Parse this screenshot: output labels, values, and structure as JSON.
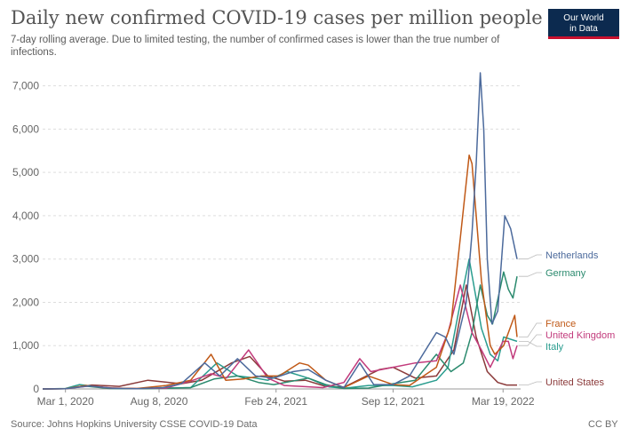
{
  "header": {
    "title": "Daily new confirmed COVID-19 cases per million people",
    "subtitle": "7-day rolling average. Due to limited testing, the number of confirmed cases is lower than the true number of infections.",
    "logo_line1": "Our World",
    "logo_line2": "in Data"
  },
  "footer": {
    "source": "Source: Johns Hopkins University CSSE COVID-19 Data",
    "license": "CC BY"
  },
  "chart_data": {
    "type": "line",
    "title": "Daily new confirmed COVID-19 cases per million people",
    "ylim": [
      0,
      7300
    ],
    "yticks": [
      0,
      1000,
      2000,
      3000,
      4000,
      5000,
      6000,
      7000
    ],
    "ytick_labels": [
      "0",
      "1,000",
      "2,000",
      "3,000",
      "4,000",
      "5,000",
      "6,000",
      "7,000"
    ],
    "xlim": [
      "2020-01-22",
      "2022-04-18"
    ],
    "xticks": [
      "2020-03-01",
      "2020-08-08",
      "2021-02-24",
      "2021-09-12",
      "2022-03-19"
    ],
    "xtick_labels": [
      "Mar 1, 2020",
      "Aug 8, 2020",
      "Feb 24, 2021",
      "Sep 12, 2021",
      "Mar 19, 2022"
    ],
    "grid": true,
    "legend": "right-end-labels",
    "series": [
      {
        "name": "Netherlands",
        "color": "#4c6a9c",
        "points": [
          [
            "2020-01-22",
            0
          ],
          [
            "2020-03-01",
            5
          ],
          [
            "2020-04-10",
            70
          ],
          [
            "2020-05-20",
            15
          ],
          [
            "2020-07-01",
            5
          ],
          [
            "2020-08-15",
            30
          ],
          [
            "2020-09-15",
            120
          ],
          [
            "2020-10-25",
            600
          ],
          [
            "2020-11-20",
            300
          ],
          [
            "2020-12-20",
            700
          ],
          [
            "2021-01-20",
            300
          ],
          [
            "2021-02-20",
            250
          ],
          [
            "2021-03-25",
            400
          ],
          [
            "2021-04-20",
            450
          ],
          [
            "2021-05-20",
            200
          ],
          [
            "2021-06-20",
            30
          ],
          [
            "2021-07-17",
            600
          ],
          [
            "2021-08-10",
            100
          ],
          [
            "2021-09-12",
            100
          ],
          [
            "2021-10-10",
            300
          ],
          [
            "2021-11-25",
            1300
          ],
          [
            "2021-12-10",
            1200
          ],
          [
            "2021-12-25",
            800
          ],
          [
            "2022-01-15",
            2000
          ],
          [
            "2022-01-25",
            3600
          ],
          [
            "2022-02-01",
            5200
          ],
          [
            "2022-02-08",
            7300
          ],
          [
            "2022-02-14",
            6000
          ],
          [
            "2022-02-20",
            3000
          ],
          [
            "2022-02-28",
            1500
          ],
          [
            "2022-03-10",
            1800
          ],
          [
            "2022-03-22",
            4000
          ],
          [
            "2022-04-01",
            3700
          ],
          [
            "2022-04-12",
            3000
          ]
        ]
      },
      {
        "name": "Germany",
        "color": "#2b8a6e",
        "points": [
          [
            "2020-01-22",
            0
          ],
          [
            "2020-03-01",
            5
          ],
          [
            "2020-04-01",
            70
          ],
          [
            "2020-05-15",
            10
          ],
          [
            "2020-07-01",
            5
          ],
          [
            "2020-08-20",
            15
          ],
          [
            "2020-10-01",
            30
          ],
          [
            "2020-11-10",
            230
          ],
          [
            "2020-12-20",
            300
          ],
          [
            "2021-01-25",
            150
          ],
          [
            "2021-02-20",
            100
          ],
          [
            "2021-04-20",
            250
          ],
          [
            "2021-05-20",
            100
          ],
          [
            "2021-06-20",
            10
          ],
          [
            "2021-08-01",
            20
          ],
          [
            "2021-09-12",
            120
          ],
          [
            "2021-10-20",
            200
          ],
          [
            "2021-11-25",
            800
          ],
          [
            "2021-12-20",
            400
          ],
          [
            "2022-01-10",
            600
          ],
          [
            "2022-01-25",
            1300
          ],
          [
            "2022-02-08",
            2400
          ],
          [
            "2022-02-20",
            1700
          ],
          [
            "2022-03-01",
            1500
          ],
          [
            "2022-03-20",
            2700
          ],
          [
            "2022-03-28",
            2300
          ],
          [
            "2022-04-05",
            2100
          ],
          [
            "2022-04-12",
            2600
          ]
        ]
      },
      {
        "name": "France",
        "color": "#c05917",
        "points": [
          [
            "2020-01-22",
            0
          ],
          [
            "2020-03-01",
            5
          ],
          [
            "2020-04-05",
            80
          ],
          [
            "2020-05-15",
            20
          ],
          [
            "2020-07-01",
            10
          ],
          [
            "2020-08-20",
            80
          ],
          [
            "2020-10-01",
            200
          ],
          [
            "2020-11-05",
            800
          ],
          [
            "2020-11-30",
            200
          ],
          [
            "2020-12-30",
            230
          ],
          [
            "2021-01-30",
            300
          ],
          [
            "2021-03-01",
            300
          ],
          [
            "2021-04-05",
            600
          ],
          [
            "2021-04-20",
            550
          ],
          [
            "2021-05-20",
            200
          ],
          [
            "2021-06-20",
            30
          ],
          [
            "2021-08-01",
            300
          ],
          [
            "2021-09-12",
            100
          ],
          [
            "2021-10-10",
            80
          ],
          [
            "2021-11-25",
            500
          ],
          [
            "2021-12-20",
            1500
          ],
          [
            "2022-01-05",
            3500
          ],
          [
            "2022-01-20",
            5400
          ],
          [
            "2022-01-25",
            5200
          ],
          [
            "2022-02-10",
            2500
          ],
          [
            "2022-02-25",
            1000
          ],
          [
            "2022-03-05",
            800
          ],
          [
            "2022-03-20",
            1000
          ],
          [
            "2022-04-08",
            1700
          ],
          [
            "2022-04-12",
            1200
          ]
        ]
      },
      {
        "name": "United Kingdom",
        "color": "#c23b7c",
        "points": [
          [
            "2020-01-22",
            0
          ],
          [
            "2020-03-01",
            5
          ],
          [
            "2020-04-12",
            70
          ],
          [
            "2020-05-20",
            20
          ],
          [
            "2020-07-01",
            10
          ],
          [
            "2020-08-20",
            20
          ],
          [
            "2020-10-05",
            200
          ],
          [
            "2020-11-05",
            350
          ],
          [
            "2020-12-01",
            250
          ],
          [
            "2021-01-08",
            900
          ],
          [
            "2021-02-10",
            250
          ],
          [
            "2021-03-10",
            80
          ],
          [
            "2021-05-15",
            30
          ],
          [
            "2021-06-20",
            150
          ],
          [
            "2021-07-17",
            700
          ],
          [
            "2021-08-05",
            400
          ],
          [
            "2021-09-12",
            500
          ],
          [
            "2021-10-20",
            600
          ],
          [
            "2021-11-25",
            650
          ],
          [
            "2021-12-15",
            1300
          ],
          [
            "2022-01-05",
            2400
          ],
          [
            "2022-01-25",
            1300
          ],
          [
            "2022-02-10",
            900
          ],
          [
            "2022-02-25",
            500
          ],
          [
            "2022-03-19",
            1100
          ],
          [
            "2022-03-28",
            1100
          ],
          [
            "2022-04-05",
            700
          ],
          [
            "2022-04-12",
            1000
          ]
        ]
      },
      {
        "name": "Italy",
        "color": "#2a9d8f",
        "points": [
          [
            "2020-01-22",
            0
          ],
          [
            "2020-03-01",
            10
          ],
          [
            "2020-03-25",
            100
          ],
          [
            "2020-05-15",
            20
          ],
          [
            "2020-07-01",
            5
          ],
          [
            "2020-08-25",
            20
          ],
          [
            "2020-10-01",
            30
          ],
          [
            "2020-11-15",
            600
          ],
          [
            "2020-12-20",
            300
          ],
          [
            "2021-01-20",
            250
          ],
          [
            "2021-02-10",
            200
          ],
          [
            "2021-03-15",
            400
          ],
          [
            "2021-04-20",
            250
          ],
          [
            "2021-05-25",
            50
          ],
          [
            "2021-06-20",
            15
          ],
          [
            "2021-08-01",
            80
          ],
          [
            "2021-09-12",
            80
          ],
          [
            "2021-10-15",
            50
          ],
          [
            "2021-11-25",
            200
          ],
          [
            "2021-12-15",
            500
          ],
          [
            "2022-01-05",
            2000
          ],
          [
            "2022-01-20",
            3000
          ],
          [
            "2022-02-10",
            1400
          ],
          [
            "2022-02-25",
            800
          ],
          [
            "2022-03-10",
            650
          ],
          [
            "2022-03-20",
            1200
          ],
          [
            "2022-04-12",
            1100
          ]
        ]
      },
      {
        "name": "United States",
        "color": "#8b3a3a",
        "points": [
          [
            "2020-01-22",
            0
          ],
          [
            "2020-03-01",
            5
          ],
          [
            "2020-04-15",
            90
          ],
          [
            "2020-06-01",
            60
          ],
          [
            "2020-07-20",
            200
          ],
          [
            "2020-09-15",
            120
          ],
          [
            "2020-10-20",
            200
          ],
          [
            "2020-12-10",
            600
          ],
          [
            "2021-01-10",
            750
          ],
          [
            "2021-02-10",
            300
          ],
          [
            "2021-03-10",
            180
          ],
          [
            "2021-04-15",
            200
          ],
          [
            "2021-05-20",
            60
          ],
          [
            "2021-06-20",
            40
          ],
          [
            "2021-08-20",
            450
          ],
          [
            "2021-09-12",
            500
          ],
          [
            "2021-10-20",
            250
          ],
          [
            "2021-11-25",
            300
          ],
          [
            "2021-12-25",
            900
          ],
          [
            "2022-01-15",
            2400
          ],
          [
            "2022-02-01",
            1200
          ],
          [
            "2022-02-20",
            400
          ],
          [
            "2022-03-10",
            150
          ],
          [
            "2022-03-25",
            90
          ],
          [
            "2022-04-12",
            90
          ]
        ]
      }
    ]
  }
}
